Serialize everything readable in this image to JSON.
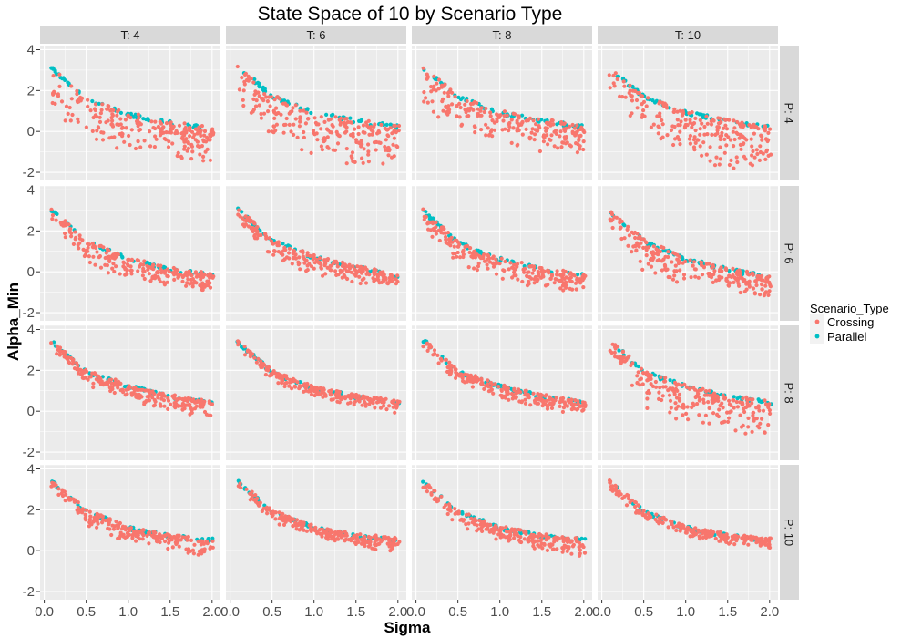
{
  "chart_data": {
    "type": "scatter",
    "title": "State Space of 10 by Scenario Type",
    "xlabel": "Sigma",
    "ylabel": "Alpha_Min",
    "xlim": [
      -0.05,
      2.1
    ],
    "ylim": [
      -2.4,
      4.2
    ],
    "x_ticks": [
      "0.0",
      "0.5",
      "1.0",
      "1.5",
      "2.0"
    ],
    "y_ticks": [
      "-2",
      "0",
      "2",
      "4"
    ],
    "x_tick_values": [
      0,
      0.5,
      1.0,
      1.5,
      2.0
    ],
    "y_tick_values": [
      -2,
      0,
      2,
      4
    ],
    "grid": true,
    "facet_columns": [
      "T: 4",
      "T: 6",
      "T: 8",
      "T: 10"
    ],
    "facet_rows": [
      "P: 4",
      "P: 6",
      "P: 8",
      "P: 10"
    ],
    "legend": {
      "title": "Scenario_Type",
      "position": "right",
      "entries": [
        {
          "name": "Crossing",
          "color": "#F8766D"
        },
        {
          "name": "Parallel",
          "color": "#00BFC4"
        }
      ]
    },
    "series": [
      {
        "name": "Crossing",
        "color": "#F8766D"
      },
      {
        "name": "Parallel",
        "color": "#00BFC4"
      }
    ],
    "panel_trends": [
      {
        "row": "P: 4",
        "col": "T: 4",
        "upper": [
          [
            0.08,
            3.2
          ],
          [
            0.5,
            1.7
          ],
          [
            1.0,
            0.9
          ],
          [
            1.5,
            0.5
          ],
          [
            2.0,
            0.2
          ]
        ],
        "lower": [
          [
            0.08,
            0.7
          ],
          [
            0.5,
            -0.6
          ],
          [
            1.0,
            -1.1
          ],
          [
            1.5,
            -1.4
          ],
          [
            2.0,
            -1.7
          ]
        ]
      },
      {
        "row": "P: 4",
        "col": "T: 6",
        "upper": [
          [
            0.08,
            3.3
          ],
          [
            0.5,
            1.8
          ],
          [
            1.0,
            1.0
          ],
          [
            1.5,
            0.6
          ],
          [
            2.0,
            0.3
          ]
        ],
        "lower": [
          [
            0.08,
            1.2
          ],
          [
            0.5,
            -0.4
          ],
          [
            1.0,
            -1.2
          ],
          [
            1.5,
            -1.8
          ],
          [
            2.0,
            -2.2
          ]
        ]
      },
      {
        "row": "P: 4",
        "col": "T: 8",
        "upper": [
          [
            0.08,
            3.2
          ],
          [
            0.5,
            1.8
          ],
          [
            1.0,
            1.0
          ],
          [
            1.5,
            0.6
          ],
          [
            2.0,
            0.3
          ]
        ],
        "lower": [
          [
            0.08,
            1.0
          ],
          [
            0.5,
            -0.1
          ],
          [
            1.0,
            -0.6
          ],
          [
            1.5,
            -1.0
          ],
          [
            2.0,
            -1.3
          ]
        ]
      },
      {
        "row": "P: 4",
        "col": "T: 10",
        "upper": [
          [
            0.08,
            3.2
          ],
          [
            0.5,
            1.8
          ],
          [
            1.0,
            1.0
          ],
          [
            1.5,
            0.6
          ],
          [
            2.0,
            0.3
          ]
        ],
        "lower": [
          [
            0.08,
            1.4
          ],
          [
            0.5,
            -0.7
          ],
          [
            1.0,
            -1.5
          ],
          [
            1.5,
            -1.9
          ],
          [
            2.0,
            -2.1
          ]
        ]
      },
      {
        "row": "P: 6",
        "col": "T: 4",
        "upper": [
          [
            0.08,
            3.1
          ],
          [
            0.5,
            1.6
          ],
          [
            1.0,
            0.7
          ],
          [
            1.5,
            0.2
          ],
          [
            2.0,
            -0.1
          ]
        ],
        "lower": [
          [
            0.08,
            2.4
          ],
          [
            0.5,
            0.2
          ],
          [
            1.0,
            -0.4
          ],
          [
            1.5,
            -0.8
          ],
          [
            2.0,
            -1.1
          ]
        ]
      },
      {
        "row": "P: 6",
        "col": "T: 6",
        "upper": [
          [
            0.08,
            3.2
          ],
          [
            0.5,
            1.6
          ],
          [
            1.0,
            0.8
          ],
          [
            1.5,
            0.3
          ],
          [
            2.0,
            -0.1
          ]
        ],
        "lower": [
          [
            0.08,
            2.2
          ],
          [
            0.5,
            0.6
          ],
          [
            1.0,
            -0.2
          ],
          [
            1.5,
            -0.6
          ],
          [
            2.0,
            -0.9
          ]
        ]
      },
      {
        "row": "P: 6",
        "col": "T: 8",
        "upper": [
          [
            0.08,
            3.1
          ],
          [
            0.5,
            1.5
          ],
          [
            1.0,
            0.7
          ],
          [
            1.5,
            0.2
          ],
          [
            2.0,
            -0.1
          ]
        ],
        "lower": [
          [
            0.08,
            2.2
          ],
          [
            0.5,
            0.2
          ],
          [
            1.0,
            -0.5
          ],
          [
            1.5,
            -0.9
          ],
          [
            2.0,
            -1.1
          ]
        ]
      },
      {
        "row": "P: 6",
        "col": "T: 10",
        "upper": [
          [
            0.08,
            3.1
          ],
          [
            0.5,
            1.6
          ],
          [
            1.0,
            0.7
          ],
          [
            1.5,
            0.2
          ],
          [
            2.0,
            -0.2
          ]
        ],
        "lower": [
          [
            0.08,
            2.2
          ],
          [
            0.5,
            -0.1
          ],
          [
            1.0,
            -0.7
          ],
          [
            1.5,
            -1.1
          ],
          [
            2.0,
            -1.5
          ]
        ]
      },
      {
        "row": "P: 8",
        "col": "T: 4",
        "upper": [
          [
            0.08,
            3.5
          ],
          [
            0.5,
            2.0
          ],
          [
            1.0,
            1.3
          ],
          [
            1.5,
            0.8
          ],
          [
            2.0,
            0.5
          ]
        ],
        "lower": [
          [
            0.08,
            3.0
          ],
          [
            0.5,
            1.2
          ],
          [
            1.0,
            0.5
          ],
          [
            1.5,
            0.0
          ],
          [
            2.0,
            -0.4
          ]
        ]
      },
      {
        "row": "P: 8",
        "col": "T: 6",
        "upper": [
          [
            0.08,
            3.5
          ],
          [
            0.5,
            2.0
          ],
          [
            1.0,
            1.2
          ],
          [
            1.5,
            0.8
          ],
          [
            2.0,
            0.5
          ]
        ],
        "lower": [
          [
            0.08,
            3.0
          ],
          [
            0.5,
            1.4
          ],
          [
            1.0,
            0.7
          ],
          [
            1.5,
            0.2
          ],
          [
            2.0,
            -0.1
          ]
        ]
      },
      {
        "row": "P: 8",
        "col": "T: 8",
        "upper": [
          [
            0.08,
            3.6
          ],
          [
            0.5,
            2.0
          ],
          [
            1.0,
            1.3
          ],
          [
            1.5,
            0.8
          ],
          [
            2.0,
            0.5
          ]
        ],
        "lower": [
          [
            0.08,
            3.0
          ],
          [
            0.5,
            1.4
          ],
          [
            1.0,
            0.6
          ],
          [
            1.5,
            0.1
          ],
          [
            2.0,
            -0.1
          ]
        ]
      },
      {
        "row": "P: 8",
        "col": "T: 10",
        "upper": [
          [
            0.08,
            3.6
          ],
          [
            0.5,
            2.0
          ],
          [
            1.0,
            1.3
          ],
          [
            1.5,
            0.8
          ],
          [
            2.0,
            0.5
          ]
        ],
        "lower": [
          [
            0.08,
            2.8
          ],
          [
            0.5,
            0.2
          ],
          [
            1.0,
            -0.6
          ],
          [
            1.5,
            -1.1
          ],
          [
            2.0,
            -1.4
          ]
        ]
      },
      {
        "row": "P: 10",
        "col": "T: 4",
        "upper": [
          [
            0.08,
            3.5
          ],
          [
            0.5,
            2.0
          ],
          [
            1.0,
            1.2
          ],
          [
            1.5,
            0.8
          ],
          [
            2.0,
            0.6
          ]
        ],
        "lower": [
          [
            0.08,
            3.0
          ],
          [
            0.5,
            1.2
          ],
          [
            1.0,
            0.4
          ],
          [
            1.5,
            0.0
          ],
          [
            2.0,
            -0.4
          ]
        ]
      },
      {
        "row": "P: 10",
        "col": "T: 6",
        "upper": [
          [
            0.08,
            3.5
          ],
          [
            0.5,
            2.0
          ],
          [
            1.0,
            1.2
          ],
          [
            1.5,
            0.8
          ],
          [
            2.0,
            0.6
          ]
        ],
        "lower": [
          [
            0.08,
            3.0
          ],
          [
            0.5,
            1.4
          ],
          [
            1.0,
            0.6
          ],
          [
            1.5,
            0.2
          ],
          [
            2.0,
            -0.1
          ]
        ]
      },
      {
        "row": "P: 10",
        "col": "T: 8",
        "upper": [
          [
            0.08,
            3.5
          ],
          [
            0.5,
            2.0
          ],
          [
            1.0,
            1.2
          ],
          [
            1.5,
            0.8
          ],
          [
            2.0,
            0.6
          ]
        ],
        "lower": [
          [
            0.08,
            3.0
          ],
          [
            0.5,
            1.2
          ],
          [
            1.0,
            0.4
          ],
          [
            1.5,
            0.0
          ],
          [
            2.0,
            -0.4
          ]
        ]
      },
      {
        "row": "P: 10",
        "col": "T: 10",
        "upper": [
          [
            0.08,
            3.5
          ],
          [
            0.5,
            2.0
          ],
          [
            1.0,
            1.2
          ],
          [
            1.5,
            0.8
          ],
          [
            2.0,
            0.6
          ]
        ],
        "lower": [
          [
            0.08,
            3.0
          ],
          [
            0.5,
            1.4
          ],
          [
            1.0,
            0.7
          ],
          [
            1.5,
            0.3
          ],
          [
            2.0,
            0.1
          ]
        ]
      }
    ]
  }
}
